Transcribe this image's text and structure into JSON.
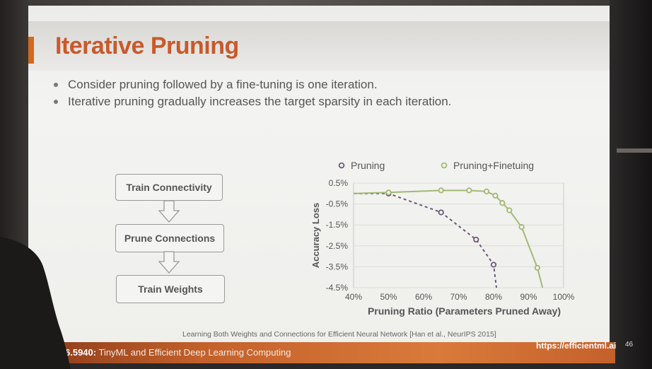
{
  "slide": {
    "title": "Iterative Pruning",
    "bullets": [
      "Consider pruning followed by a fine-tuning is one iteration.",
      "Iterative pruning gradually increases the target sparsity in each iteration."
    ],
    "flow": [
      "Train Connectivity",
      "Prune Connections",
      "Train Weights"
    ],
    "citation": "Learning Both Weights and Connections for Efficient Neural Network [Han et al., NeurIPS 2015]"
  },
  "footer": {
    "course_code": "MIT 6.5940:",
    "course_name": "TinyML and Efficient Deep Learning Computing",
    "url": "https://efficientml.ai",
    "page": "46"
  },
  "chart_data": {
    "type": "line",
    "xlabel": "Pruning Ratio (Parameters Pruned Away)",
    "ylabel": "Accuracy Loss",
    "x_ticks": [
      "40%",
      "50%",
      "60%",
      "70%",
      "80%",
      "90%",
      "100%"
    ],
    "y_ticks": [
      "0.5%",
      "-0.5%",
      "-1.5%",
      "-2.5%",
      "-3.5%",
      "-4.5%"
    ],
    "xlim": [
      40,
      100
    ],
    "ylim": [
      -4.5,
      0.5
    ],
    "grid": true,
    "legend": "top",
    "series": [
      {
        "name": "Pruning",
        "color": "#6b5a7a",
        "style": "dashed",
        "points": [
          [
            40,
            0
          ],
          [
            50,
            0
          ],
          [
            65,
            -0.9
          ],
          [
            75,
            -2.2
          ],
          [
            80,
            -3.4
          ],
          [
            80.8,
            -4.5
          ]
        ]
      },
      {
        "name": "Pruning+Finetuing",
        "color": "#a2b874",
        "style": "solid",
        "points": [
          [
            40,
            0.0
          ],
          [
            50,
            0.05
          ],
          [
            65,
            0.15
          ],
          [
            73,
            0.15
          ],
          [
            78,
            0.1
          ],
          [
            80.5,
            -0.1
          ],
          [
            82.5,
            -0.45
          ],
          [
            84.5,
            -0.8
          ],
          [
            88,
            -1.6
          ],
          [
            92.5,
            -3.55
          ],
          [
            94,
            -4.5
          ]
        ]
      }
    ],
    "markers": {
      "Pruning": [
        [
          50,
          0
        ],
        [
          65,
          -0.9
        ],
        [
          75,
          -2.2
        ],
        [
          80,
          -3.4
        ]
      ],
      "Pruning+Finetuing": [
        [
          50,
          0.05
        ],
        [
          65,
          0.15
        ],
        [
          73,
          0.15
        ],
        [
          78,
          0.1
        ],
        [
          80.5,
          -0.1
        ],
        [
          82.5,
          -0.45
        ],
        [
          84.5,
          -0.8
        ],
        [
          88,
          -1.6
        ],
        [
          92.5,
          -3.55
        ]
      ]
    }
  }
}
